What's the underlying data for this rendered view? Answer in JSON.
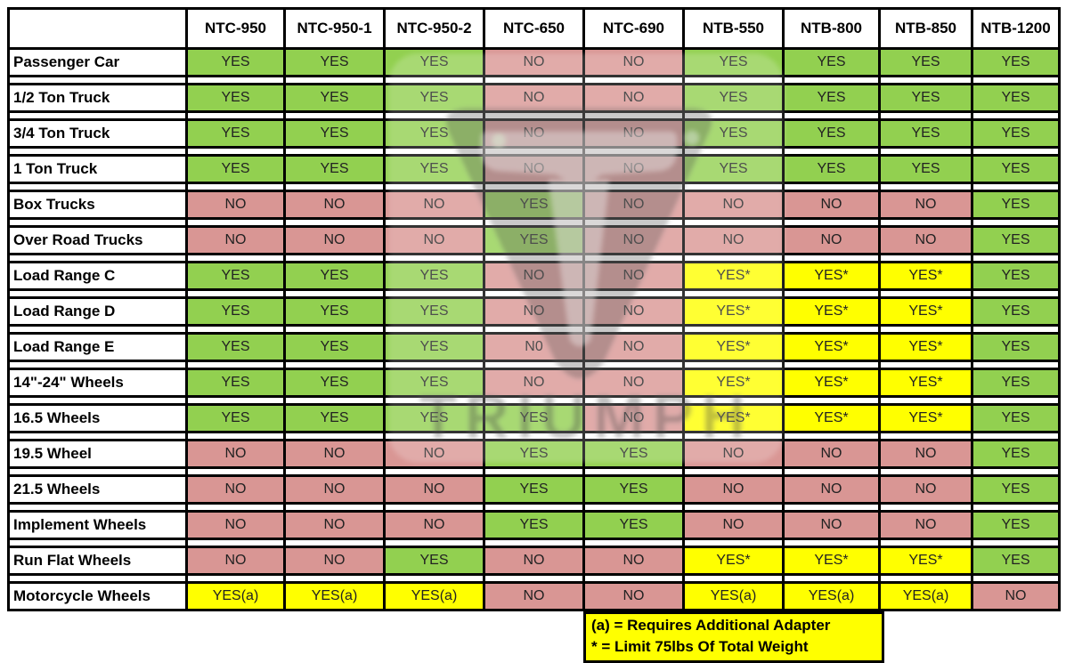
{
  "chart_data": {
    "type": "table",
    "models": [
      "NTC-950",
      "NTC-950-1",
      "NTC-950-2",
      "NTC-650",
      "NTC-690",
      "NTB-550",
      "NTB-800",
      "NTB-850",
      "NTB-1200"
    ],
    "rows": [
      {
        "label": "Passenger Car",
        "values": [
          "YES",
          "YES",
          "YES",
          "NO",
          "NO",
          "YES",
          "YES",
          "YES",
          "YES"
        ]
      },
      {
        "label": "1/2 Ton Truck",
        "values": [
          "YES",
          "YES",
          "YES",
          "NO",
          "NO",
          "YES",
          "YES",
          "YES",
          "YES"
        ]
      },
      {
        "label": "3/4 Ton Truck",
        "values": [
          "YES",
          "YES",
          "YES",
          "NO",
          "NO",
          "YES",
          "YES",
          "YES",
          "YES"
        ]
      },
      {
        "label": "1 Ton Truck",
        "values": [
          "YES",
          "YES",
          "YES",
          "NO",
          "NO",
          "YES",
          "YES",
          "YES",
          "YES"
        ]
      },
      {
        "label": "Box Trucks",
        "values": [
          "NO",
          "NO",
          "NO",
          "YES",
          "NO",
          "NO",
          "NO",
          "NO",
          "YES"
        ]
      },
      {
        "label": "Over Road Trucks",
        "values": [
          "NO",
          "NO",
          "NO",
          "YES",
          "NO",
          "NO",
          "NO",
          "NO",
          "YES"
        ]
      },
      {
        "label": "Load Range C",
        "values": [
          "YES",
          "YES",
          "YES",
          "NO",
          "NO",
          "YES*",
          "YES*",
          "YES*",
          "YES"
        ]
      },
      {
        "label": "Load Range D",
        "values": [
          "YES",
          "YES",
          "YES",
          "NO",
          "NO",
          "YES*",
          "YES*",
          "YES*",
          "YES"
        ]
      },
      {
        "label": "Load Range E",
        "values": [
          "YES",
          "YES",
          "YES",
          "N0",
          "NO",
          "YES*",
          "YES*",
          "YES*",
          "YES"
        ]
      },
      {
        "label": "14\"-24\" Wheels",
        "values": [
          "YES",
          "YES",
          "YES",
          "NO",
          "NO",
          "YES*",
          "YES*",
          "YES*",
          "YES"
        ]
      },
      {
        "label": "16.5 Wheels",
        "values": [
          "YES",
          "YES",
          "YES",
          "YES",
          "NO",
          "YES*",
          "YES*",
          "YES*",
          "YES"
        ]
      },
      {
        "label": "19.5 Wheel",
        "values": [
          "NO",
          "NO",
          "NO",
          "YES",
          "YES",
          "NO",
          "NO",
          "NO",
          "YES"
        ]
      },
      {
        "label": "21.5 Wheels",
        "values": [
          "NO",
          "NO",
          "NO",
          "YES",
          "YES",
          "NO",
          "NO",
          "NO",
          "YES"
        ]
      },
      {
        "label": "Implement Wheels",
        "values": [
          "NO",
          "NO",
          "NO",
          "YES",
          "YES",
          "NO",
          "NO",
          "NO",
          "YES"
        ]
      },
      {
        "label": "Run Flat Wheels",
        "values": [
          "NO",
          "NO",
          "YES",
          "NO",
          "NO",
          "YES*",
          "YES*",
          "YES*",
          "YES"
        ]
      },
      {
        "label": "Motorcycle Wheels",
        "values": [
          "YES(a)",
          "YES(a)",
          "YES(a)",
          "NO",
          "NO",
          "YES(a)",
          "YES(a)",
          "YES(a)",
          "NO"
        ]
      }
    ],
    "cell_colors": {
      "YES": "#92D050",
      "NO": "#D99694",
      "N0": "#D99694",
      "YES*": "#FFFF00",
      "YES(a)": "#FFFF00"
    },
    "legend_position": "bottom",
    "grid": true
  },
  "legend": {
    "lines": [
      "(a) = Requires Additional Adapter",
      "* = Limit 75lbs Of Total Weight"
    ]
  },
  "watermark": {
    "text": "TRIUMPH"
  },
  "colors": {
    "yes_green": "#92D050",
    "no_pink": "#D99694",
    "conditional_yellow": "#FFFF00",
    "border_black": "#000000"
  }
}
